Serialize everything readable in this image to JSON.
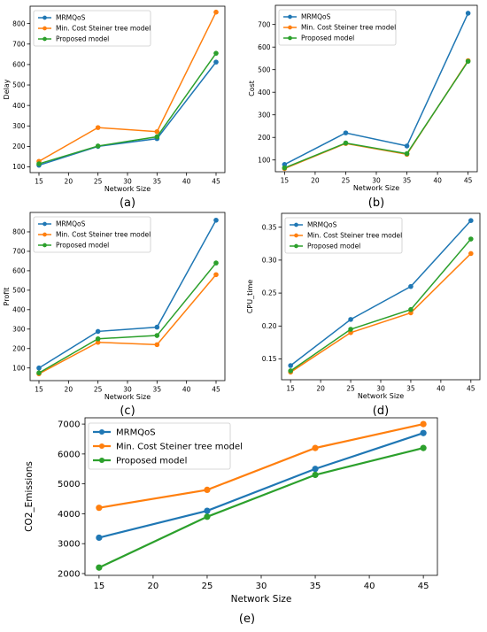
{
  "legend_labels": [
    "MRMQoS",
    "Min. Cost Steiner tree model",
    "Proposed model"
  ],
  "colors": {
    "MRMQoS": "#1f77b4",
    "MinCost": "#ff7f0e",
    "Proposed": "#2ca02c"
  },
  "chart_data": [
    {
      "type": "line",
      "caption": "(a)",
      "xlabel": "Network Size",
      "ylabel": "Delay",
      "x": [
        15,
        25,
        35,
        45
      ],
      "xticks": [
        15,
        20,
        25,
        30,
        35,
        40,
        45
      ],
      "yticks": [
        100,
        200,
        300,
        400,
        500,
        600,
        700,
        800
      ],
      "ylim": [
        72,
        885
      ],
      "legend": "top-left",
      "series": [
        {
          "name": "MRMQoS",
          "values": [
            108,
            200,
            238,
            612
          ]
        },
        {
          "name": "Min. Cost Steiner tree model",
          "values": [
            127,
            292,
            272,
            856
          ]
        },
        {
          "name": "Proposed model",
          "values": [
            115,
            202,
            247,
            655
          ]
        }
      ]
    },
    {
      "type": "line",
      "caption": "(b)",
      "xlabel": "Network Size",
      "ylabel": "Cost",
      "x": [
        15,
        25,
        35,
        45
      ],
      "xticks": [
        15,
        20,
        25,
        30,
        35,
        40,
        45
      ],
      "yticks": [
        100,
        200,
        300,
        400,
        500,
        600,
        700
      ],
      "ylim": [
        48,
        785
      ],
      "legend": "top-left",
      "series": [
        {
          "name": "MRMQoS",
          "values": [
            80,
            220,
            162,
            750
          ]
        },
        {
          "name": "Min. Cost Steiner tree model",
          "values": [
            62,
            173,
            125,
            540
          ]
        },
        {
          "name": "Proposed model",
          "values": [
            65,
            175,
            128,
            537
          ]
        }
      ]
    },
    {
      "type": "line",
      "caption": "(c)",
      "xlabel": "Network Size",
      "ylabel": "Profit",
      "x": [
        15,
        25,
        35,
        45
      ],
      "xticks": [
        15,
        20,
        25,
        30,
        35,
        40,
        45
      ],
      "yticks": [
        100,
        200,
        300,
        400,
        500,
        600,
        700,
        800
      ],
      "ylim": [
        35,
        900
      ],
      "legend": "top-left",
      "series": [
        {
          "name": "MRMQoS",
          "values": [
            100,
            288,
            310,
            860
          ]
        },
        {
          "name": "Min. Cost Steiner tree model",
          "values": [
            70,
            232,
            220,
            580
          ]
        },
        {
          "name": "Proposed model",
          "values": [
            75,
            250,
            267,
            640
          ]
        }
      ]
    },
    {
      "type": "line",
      "caption": "(d)",
      "xlabel": "Network Size",
      "ylabel": "CPU_time",
      "x": [
        15,
        25,
        35,
        45
      ],
      "xticks": [
        15,
        20,
        25,
        30,
        35,
        40,
        45
      ],
      "yticks": [
        0.15,
        0.2,
        0.25,
        0.3,
        0.35
      ],
      "ylim": [
        0.1185,
        0.371
      ],
      "legend": "top-left",
      "series": [
        {
          "name": "MRMQoS",
          "values": [
            0.14,
            0.21,
            0.26,
            0.36
          ]
        },
        {
          "name": "Min. Cost Steiner tree model",
          "values": [
            0.13,
            0.19,
            0.22,
            0.31
          ]
        },
        {
          "name": "Proposed model",
          "values": [
            0.132,
            0.195,
            0.225,
            0.332
          ]
        }
      ]
    },
    {
      "type": "line",
      "caption": "(e)",
      "xlabel": "Network Size",
      "ylabel": "CO2_Emissions",
      "x": [
        15,
        25,
        35,
        45
      ],
      "xticks": [
        15,
        20,
        25,
        30,
        35,
        40,
        45
      ],
      "yticks": [
        2000,
        3000,
        4000,
        5000,
        6000,
        7000
      ],
      "ylim": [
        1940,
        7210
      ],
      "legend": "top-left",
      "series": [
        {
          "name": "MRMQoS",
          "values": [
            3200,
            4100,
            5500,
            6700
          ]
        },
        {
          "name": "Min. Cost Steiner tree model",
          "values": [
            4200,
            4800,
            6200,
            7000
          ]
        },
        {
          "name": "Proposed model",
          "values": [
            2200,
            3900,
            5300,
            6200
          ]
        }
      ]
    }
  ]
}
